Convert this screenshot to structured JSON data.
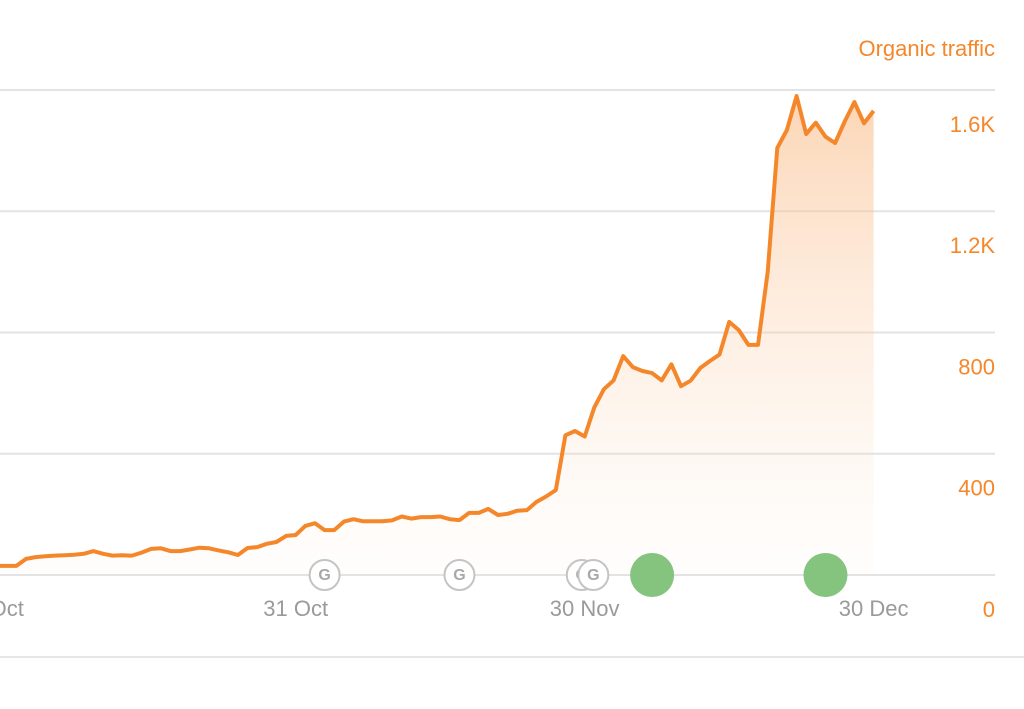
{
  "chart_data": {
    "type": "line",
    "title": "Organic traffic",
    "x": [
      -1,
      0,
      1,
      2,
      3,
      4,
      5,
      6,
      7,
      8,
      9,
      10,
      11,
      12,
      13,
      14,
      15,
      16,
      17,
      18,
      19,
      20,
      21,
      22,
      23,
      24,
      25,
      26,
      27,
      28,
      29,
      30,
      31,
      32,
      33,
      34,
      35,
      36,
      37,
      38,
      39,
      40,
      41,
      42,
      43,
      44,
      45,
      46,
      47,
      48,
      49,
      50,
      51,
      52,
      53,
      54,
      55,
      56,
      57,
      58,
      59,
      60,
      61,
      62,
      63,
      64,
      65,
      66,
      67,
      68,
      69,
      70,
      71,
      72,
      73,
      74,
      75,
      76,
      77,
      78,
      79,
      80,
      81,
      82,
      83,
      84,
      85,
      86,
      87,
      88,
      89,
      90
    ],
    "series": [
      {
        "name": "Organic traffic",
        "color": "#f5872b",
        "values": [
          30,
          30,
          30,
          53,
          59,
          62,
          64,
          65,
          67,
          70,
          79,
          70,
          64,
          65,
          64,
          74,
          86,
          88,
          79,
          79,
          84,
          90,
          88,
          81,
          75,
          66,
          89,
          92,
          103,
          109,
          129,
          132,
          162,
          171,
          148,
          148,
          176,
          184,
          177,
          177,
          177,
          180,
          193,
          186,
          191,
          191,
          193,
          184,
          181,
          205,
          205,
          218,
          198,
          202,
          212,
          214,
          241,
          259,
          280,
          461,
          475,
          457,
          553,
          613,
          642,
          722,
          686,
          673,
          666,
          642,
          695,
          623,
          641,
          683,
          706,
          727,
          835,
          808,
          759,
          759,
          1000,
          1409,
          1468,
          1580,
          1455,
          1492,
          1446,
          1425,
          1496,
          1560,
          1490,
          1531
        ]
      }
    ],
    "xlim": [
      -0.7,
      102.6
    ],
    "xticks": [
      {
        "value": 0,
        "label": "Oct"
      },
      {
        "value": 30,
        "label": "31 Oct"
      },
      {
        "value": 60,
        "label": "30 Nov"
      },
      {
        "value": 90,
        "label": "30 Dec"
      }
    ],
    "ylim": [
      0,
      1600
    ],
    "yticks": [
      0,
      400,
      800,
      {
        "value": 1200,
        "label": "1.2K"
      },
      {
        "value": 1600,
        "label": "1.6K"
      }
    ],
    "grid": true,
    "updates": [
      {
        "x": 33,
        "label": "G"
      },
      {
        "x": 47,
        "label": "G"
      },
      {
        "x": 59.7,
        "label": "G"
      },
      {
        "x": 60.9,
        "label": "G"
      }
    ],
    "events": [
      {
        "x": 67,
        "color": "#84c47f"
      },
      {
        "x": 85,
        "color": "#84c47f"
      }
    ]
  }
}
